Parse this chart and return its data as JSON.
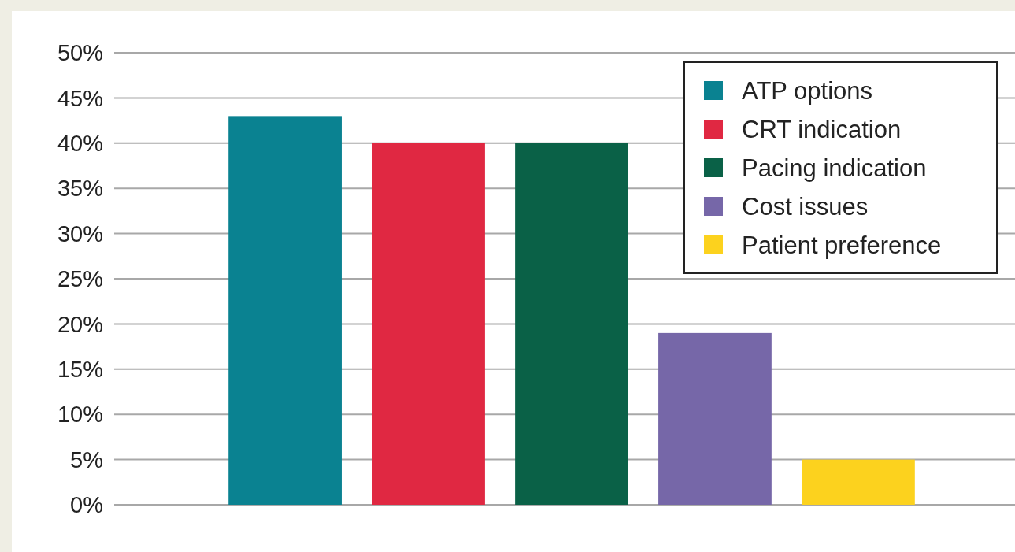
{
  "chart_data": {
    "type": "bar",
    "categories": [
      null,
      null,
      null,
      null,
      null
    ],
    "series": [
      {
        "name": "ATP options",
        "color": "#0a8291",
        "values": [
          43,
          null,
          null,
          null,
          null
        ]
      },
      {
        "name": "CRT indication",
        "color": "#e02842",
        "values": [
          null,
          40,
          null,
          null,
          null
        ]
      },
      {
        "name": "Pacing indication",
        "color": "#0a6147",
        "values": [
          null,
          null,
          40,
          null,
          null
        ]
      },
      {
        "name": "Cost issues",
        "color": "#7667a8",
        "values": [
          null,
          null,
          null,
          19,
          null
        ]
      },
      {
        "name": "Patient preference",
        "color": "#fcd21e",
        "values": [
          null,
          null,
          null,
          null,
          5
        ]
      }
    ],
    "ylim": [
      0,
      50
    ],
    "yticks": [
      {
        "value": 0,
        "label": "0%"
      },
      {
        "value": 5,
        "label": "5%"
      },
      {
        "value": 10,
        "label": "10%"
      },
      {
        "value": 15,
        "label": "15%"
      },
      {
        "value": 20,
        "label": "20%"
      },
      {
        "value": 25,
        "label": "25%"
      },
      {
        "value": 30,
        "label": "30%"
      },
      {
        "value": 35,
        "label": "35%"
      },
      {
        "value": 40,
        "label": "40%"
      },
      {
        "value": 45,
        "label": "45%"
      },
      {
        "value": 50,
        "label": "50%"
      }
    ],
    "grid": "y",
    "legend": "top right"
  }
}
